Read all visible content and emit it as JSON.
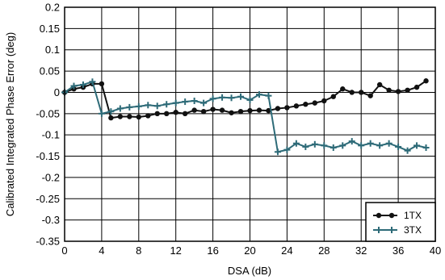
{
  "chart_data": {
    "type": "line",
    "xlabel": "DSA (dB)",
    "ylabel": "Calibrated Integrated Phase Error (deg)",
    "xlim": [
      0,
      40
    ],
    "ylim": [
      -0.35,
      0.2
    ],
    "x_ticks": [
      "0",
      "4",
      "8",
      "12",
      "16",
      "20",
      "24",
      "28",
      "32",
      "36",
      "40"
    ],
    "y_ticks": [
      "0.2",
      "0.15",
      "0.1",
      "0.05",
      "0",
      "-0.05",
      "-0.1",
      "-0.15",
      "-0.2",
      "-0.25",
      "-0.3",
      "-0.35"
    ],
    "grid": true,
    "legend_position": "bottom-right",
    "x": [
      0,
      1,
      2,
      3,
      4,
      5,
      6,
      7,
      8,
      9,
      10,
      11,
      12,
      13,
      14,
      15,
      16,
      17,
      18,
      19,
      20,
      21,
      22,
      23,
      24,
      25,
      26,
      27,
      28,
      29,
      30,
      31,
      32,
      33,
      34,
      35,
      36,
      37,
      38,
      39
    ],
    "series": [
      {
        "name": "1TX",
        "color": "#111111",
        "marker": "circle",
        "values": [
          0.0,
          0.008,
          0.012,
          0.02,
          0.02,
          -0.06,
          -0.057,
          -0.057,
          -0.058,
          -0.055,
          -0.05,
          -0.05,
          -0.047,
          -0.05,
          -0.042,
          -0.045,
          -0.04,
          -0.042,
          -0.048,
          -0.045,
          -0.043,
          -0.042,
          -0.043,
          -0.038,
          -0.036,
          -0.032,
          -0.028,
          -0.025,
          -0.02,
          -0.01,
          0.008,
          0.0,
          0.0,
          -0.008,
          0.018,
          0.005,
          0.002,
          0.005,
          0.012,
          0.027
        ]
      },
      {
        "name": "3TX",
        "color": "#2e6b78",
        "marker": "plus",
        "values": [
          0.0,
          0.015,
          0.018,
          0.025,
          -0.05,
          -0.045,
          -0.038,
          -0.035,
          -0.033,
          -0.03,
          -0.032,
          -0.028,
          -0.025,
          -0.022,
          -0.02,
          -0.025,
          -0.015,
          -0.012,
          -0.013,
          -0.01,
          -0.018,
          -0.005,
          -0.008,
          -0.14,
          -0.135,
          -0.12,
          -0.128,
          -0.122,
          -0.125,
          -0.13,
          -0.125,
          -0.115,
          -0.125,
          -0.12,
          -0.125,
          -0.12,
          -0.128,
          -0.137,
          -0.125,
          -0.13
        ]
      }
    ]
  }
}
